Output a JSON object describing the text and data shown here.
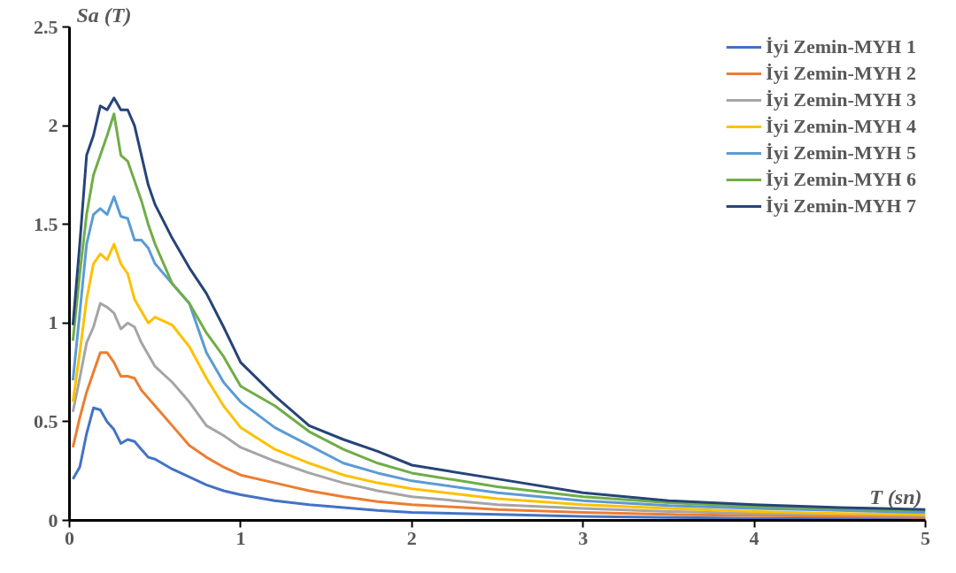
{
  "chart_data": {
    "type": "line",
    "xlabel": "T (sn)",
    "ylabel": "Sa (T)",
    "x": [
      0.02,
      0.06,
      0.1,
      0.14,
      0.18,
      0.22,
      0.26,
      0.3,
      0.34,
      0.38,
      0.42,
      0.46,
      0.5,
      0.6,
      0.7,
      0.8,
      0.9,
      1.0,
      1.2,
      1.4,
      1.6,
      1.8,
      2.0,
      2.5,
      3.0,
      3.5,
      4.0,
      4.5,
      5.0
    ],
    "series": [
      {
        "name": "İyi Zemin-MYH 1",
        "color": "#4472c4",
        "values": [
          0.21,
          0.27,
          0.44,
          0.57,
          0.56,
          0.5,
          0.46,
          0.39,
          0.41,
          0.4,
          0.36,
          0.32,
          0.31,
          0.26,
          0.22,
          0.18,
          0.15,
          0.13,
          0.1,
          0.08,
          0.065,
          0.05,
          0.04,
          0.03,
          0.02,
          0.015,
          0.01,
          0.01,
          0.01
        ]
      },
      {
        "name": "İyi Zemin-MYH 2",
        "color": "#ed7d31",
        "values": [
          0.37,
          0.52,
          0.65,
          0.75,
          0.85,
          0.85,
          0.8,
          0.73,
          0.73,
          0.72,
          0.66,
          0.62,
          0.58,
          0.48,
          0.38,
          0.32,
          0.27,
          0.23,
          0.19,
          0.15,
          0.12,
          0.095,
          0.08,
          0.055,
          0.04,
          0.03,
          0.025,
          0.02,
          0.015
        ]
      },
      {
        "name": "İyi Zemin-MYH 3",
        "color": "#a5a5a5",
        "values": [
          0.55,
          0.72,
          0.9,
          0.98,
          1.1,
          1.08,
          1.05,
          0.97,
          1.0,
          0.98,
          0.9,
          0.84,
          0.78,
          0.7,
          0.6,
          0.48,
          0.43,
          0.37,
          0.3,
          0.24,
          0.19,
          0.15,
          0.12,
          0.08,
          0.06,
          0.045,
          0.035,
          0.03,
          0.025
        ]
      },
      {
        "name": "İyi Zemin-MYH 4",
        "color": "#ffc000",
        "values": [
          0.6,
          0.85,
          1.12,
          1.3,
          1.35,
          1.32,
          1.4,
          1.3,
          1.25,
          1.12,
          1.06,
          1.0,
          1.03,
          0.99,
          0.88,
          0.72,
          0.58,
          0.47,
          0.36,
          0.29,
          0.23,
          0.19,
          0.16,
          0.11,
          0.08,
          0.06,
          0.045,
          0.035,
          0.03
        ]
      },
      {
        "name": "İyi Zemin-MYH 5",
        "color": "#5b9bd5",
        "values": [
          0.71,
          1.05,
          1.4,
          1.55,
          1.58,
          1.55,
          1.64,
          1.54,
          1.53,
          1.42,
          1.42,
          1.38,
          1.3,
          1.2,
          1.1,
          0.85,
          0.7,
          0.6,
          0.47,
          0.38,
          0.29,
          0.24,
          0.2,
          0.14,
          0.1,
          0.075,
          0.06,
          0.05,
          0.04
        ]
      },
      {
        "name": "İyi Zemin-MYH 6",
        "color": "#70ad47",
        "values": [
          0.91,
          1.25,
          1.55,
          1.75,
          1.85,
          1.95,
          2.06,
          1.85,
          1.82,
          1.72,
          1.62,
          1.5,
          1.4,
          1.2,
          1.1,
          0.95,
          0.83,
          0.68,
          0.58,
          0.45,
          0.36,
          0.29,
          0.24,
          0.17,
          0.12,
          0.09,
          0.07,
          0.06,
          0.05
        ]
      },
      {
        "name": "İyi Zemin-MYH 7",
        "color": "#264478",
        "values": [
          0.99,
          1.4,
          1.85,
          1.95,
          2.1,
          2.08,
          2.14,
          2.08,
          2.08,
          2.0,
          1.85,
          1.7,
          1.6,
          1.43,
          1.28,
          1.15,
          0.98,
          0.8,
          0.63,
          0.48,
          0.41,
          0.35,
          0.28,
          0.21,
          0.14,
          0.1,
          0.08,
          0.065,
          0.055
        ]
      }
    ],
    "xlim": [
      0,
      5
    ],
    "xticks": [
      0,
      1,
      2,
      3,
      4,
      5
    ],
    "ylim": [
      0,
      2.5
    ],
    "yticks": [
      0,
      0.5,
      1,
      1.5,
      2,
      2.5
    ],
    "grid": false,
    "legend": "top right",
    "marker": "none",
    "line_style": "solid"
  }
}
